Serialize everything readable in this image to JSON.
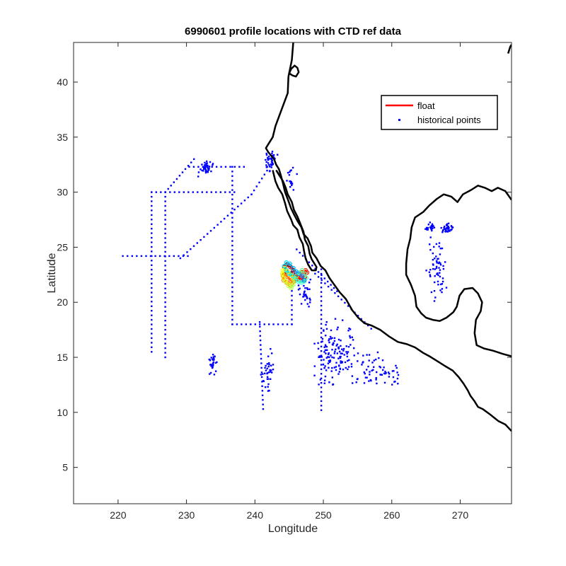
{
  "chart_data": {
    "type": "scatter",
    "title": "6990601 profile locations with CTD ref data",
    "xlabel": "Longitude",
    "ylabel": "Latitude",
    "xlim": [
      213.5,
      277.5
    ],
    "ylim": [
      1.7,
      43.6
    ],
    "xticks": [
      220,
      230,
      240,
      250,
      260,
      270
    ],
    "yticks": [
      5,
      10,
      15,
      20,
      25,
      30,
      35,
      40
    ],
    "grid": false,
    "legend": {
      "placement": "top-right",
      "entries": [
        {
          "label": "float",
          "color": "#ff0000",
          "marker": "line"
        },
        {
          "label": "historical points",
          "color": "#0000ff",
          "marker": "dot"
        }
      ]
    },
    "colors": {
      "coastline": "#000000",
      "historical": "#0000ff",
      "float": "#ff0000"
    },
    "coastline": [
      [
        [
          245.6,
          43.6
        ],
        [
          245.4,
          42
        ],
        [
          244.9,
          40.5
        ],
        [
          244.8,
          39
        ],
        [
          244.2,
          38
        ],
        [
          243.6,
          37
        ],
        [
          243,
          36
        ],
        [
          242.6,
          35
        ],
        [
          242,
          34.4
        ],
        [
          241.6,
          34
        ],
        [
          242,
          33.6
        ],
        [
          242.8,
          33
        ],
        [
          243.1,
          32.5
        ],
        [
          243.5,
          32.1
        ],
        [
          243.8,
          31.5
        ],
        [
          244.1,
          30.8
        ],
        [
          244.4,
          30
        ],
        [
          244.9,
          29.2
        ],
        [
          245.3,
          28.5
        ],
        [
          245.7,
          28
        ],
        [
          246.2,
          27.4
        ],
        [
          246.8,
          26.8
        ],
        [
          247.1,
          26.2
        ],
        [
          247.7,
          25.8
        ],
        [
          248.2,
          25.1
        ],
        [
          248.4,
          24.5
        ],
        [
          249,
          24
        ],
        [
          249.6,
          23.3
        ],
        [
          250.3,
          22.9
        ],
        [
          250.9,
          22.2
        ],
        [
          251.7,
          21.5
        ],
        [
          252.4,
          20.9
        ],
        [
          253.3,
          20.3
        ],
        [
          254.2,
          19.3
        ],
        [
          255.1,
          18.6
        ],
        [
          256,
          18.1
        ],
        [
          257,
          17.9
        ],
        [
          258.3,
          17.5
        ],
        [
          259.6,
          16.9
        ],
        [
          260.9,
          16.4
        ],
        [
          262.2,
          16.2
        ],
        [
          263.4,
          15.9
        ],
        [
          264.6,
          15.4
        ],
        [
          265.5,
          15.1
        ],
        [
          266.8,
          14.6
        ],
        [
          267.8,
          14.2
        ],
        [
          268.9,
          13.8
        ],
        [
          269.8,
          13.2
        ],
        [
          270.5,
          12.6
        ],
        [
          271.1,
          12
        ],
        [
          271.5,
          11.5
        ],
        [
          272.1,
          11
        ],
        [
          272.6,
          10.5
        ],
        [
          273.3,
          10.3
        ],
        [
          274.4,
          9.8
        ],
        [
          275.6,
          9.2
        ],
        [
          276.6,
          8.9
        ],
        [
          277.5,
          8.3
        ]
      ],
      [
        [
          242.6,
          32
        ],
        [
          243,
          31
        ],
        [
          243.4,
          30.4
        ],
        [
          244,
          29.8
        ],
        [
          244.4,
          29
        ],
        [
          244.7,
          28.3
        ],
        [
          245.3,
          27.5
        ],
        [
          245.6,
          27
        ],
        [
          246.2,
          26.6
        ],
        [
          246.5,
          25.9
        ],
        [
          247,
          25.3
        ],
        [
          247.2,
          24.6
        ],
        [
          247.4,
          24
        ],
        [
          247.8,
          23.4
        ],
        [
          248.3,
          22.9
        ],
        [
          248.9,
          22.9
        ],
        [
          249,
          23.2
        ],
        [
          248.3,
          23.9
        ],
        [
          248,
          24.4
        ],
        [
          247.8,
          25.1
        ],
        [
          247.3,
          25.7
        ],
        [
          247.1,
          26.4
        ],
        [
          246.6,
          27.2
        ],
        [
          246.2,
          27.8
        ],
        [
          245.7,
          28.4
        ],
        [
          245.4,
          29.1
        ],
        [
          244.8,
          29.8
        ],
        [
          244.5,
          30.4
        ],
        [
          244.1,
          31
        ],
        [
          243.6,
          31.5
        ],
        [
          243.1,
          32
        ]
      ],
      [
        [
          277.5,
          29.3
        ],
        [
          276.6,
          30.1
        ],
        [
          275.5,
          30.4
        ],
        [
          274.6,
          30.1
        ],
        [
          273.6,
          30.4
        ],
        [
          272.6,
          30.6
        ],
        [
          271.6,
          30.2
        ],
        [
          270.4,
          29.8
        ],
        [
          269.6,
          29.1
        ],
        [
          268.7,
          29.6
        ],
        [
          267.6,
          29.8
        ],
        [
          266.6,
          29.4
        ],
        [
          265.5,
          28.8
        ],
        [
          264.6,
          28.2
        ],
        [
          263.4,
          27.7
        ],
        [
          262.9,
          26.8
        ],
        [
          262.7,
          25.8
        ],
        [
          262.3,
          24.8
        ],
        [
          262.1,
          23.5
        ],
        [
          262.1,
          22.5
        ],
        [
          262.8,
          21.6
        ],
        [
          263.4,
          20.6
        ],
        [
          263.6,
          19.6
        ],
        [
          264.3,
          19
        ],
        [
          265,
          18.6
        ],
        [
          266,
          18.4
        ],
        [
          267,
          18.3
        ],
        [
          268,
          18.6
        ],
        [
          269,
          19.1
        ],
        [
          269.5,
          19.6
        ],
        [
          269.9,
          20.6
        ],
        [
          270.6,
          21.2
        ],
        [
          271.8,
          21.3
        ],
        [
          272.6,
          20.8
        ],
        [
          273.2,
          20
        ],
        [
          273,
          19.2
        ],
        [
          272.3,
          18.4
        ],
        [
          272.1,
          17.2
        ],
        [
          272.4,
          16.1
        ],
        [
          273.5,
          15.8
        ],
        [
          274.8,
          15.6
        ],
        [
          276.3,
          15.3
        ],
        [
          277.5,
          15.1
        ]
      ]
    ],
    "islands": [
      [
        [
          245,
          40.8
        ],
        [
          245.3,
          41.2
        ],
        [
          245.8,
          41.5
        ],
        [
          246.2,
          41.3
        ],
        [
          246.4,
          40.9
        ],
        [
          246,
          40.5
        ],
        [
          245.5,
          40.6
        ],
        [
          245,
          40.8
        ]
      ],
      [
        [
          277,
          42.6
        ],
        [
          277.3,
          43.2
        ],
        [
          277.5,
          43.4
        ]
      ]
    ],
    "historical_tracks": [
      [
        [
          224.9,
          30
        ],
        [
          224.9,
          15.5
        ]
      ],
      [
        [
          226.9,
          30
        ],
        [
          226.9,
          15
        ]
      ],
      [
        [
          220.7,
          24.2
        ],
        [
          230.2,
          24.2
        ]
      ],
      [
        [
          224.9,
          30
        ],
        [
          237,
          30
        ]
      ],
      [
        [
          226.9,
          30
        ],
        [
          231.1,
          33
        ]
      ],
      [
        [
          230.4,
          32.3
        ],
        [
          238.4,
          32.3
        ]
      ],
      [
        [
          236.7,
          32.3
        ],
        [
          236.7,
          18
        ]
      ],
      [
        [
          236.7,
          18
        ],
        [
          245.4,
          18
        ]
      ],
      [
        [
          245.4,
          18
        ],
        [
          245.4,
          23.2
        ]
      ],
      [
        [
          229.1,
          24
        ],
        [
          239.5,
          29.8
        ]
      ],
      [
        [
          239.5,
          29.8
        ],
        [
          243.3,
          33.4
        ]
      ],
      [
        [
          246.1,
          24.8
        ],
        [
          252,
          21
        ]
      ],
      [
        [
          249.7,
          23
        ],
        [
          249.7,
          10.2
        ]
      ],
      [
        [
          248.8,
          22.6
        ],
        [
          257,
          17.6
        ]
      ],
      [
        [
          240.7,
          18.2
        ],
        [
          241.2,
          10.3
        ]
      ]
    ],
    "historical_clusters": [
      {
        "center": [
          232.8,
          32.2
        ],
        "spread": [
          1.3,
          0.9
        ],
        "count": 40
      },
      {
        "center": [
          242.2,
          32.8
        ],
        "spread": [
          1,
          1.1
        ],
        "count": 40
      },
      {
        "center": [
          265.6,
          26.8
        ],
        "spread": [
          0.9,
          0.7
        ],
        "count": 24
      },
      {
        "center": [
          268.2,
          26.7
        ],
        "spread": [
          1.3,
          0.6
        ],
        "count": 36
      },
      {
        "center": [
          266.6,
          23
        ],
        "spread": [
          1.8,
          3.7
        ],
        "count": 60
      },
      {
        "center": [
          233.8,
          14.4
        ],
        "spread": [
          0.8,
          1.8
        ],
        "count": 32
      },
      {
        "center": [
          242,
          13.6
        ],
        "spread": [
          1.4,
          2.5
        ],
        "count": 36
      },
      {
        "center": [
          251.6,
          15.2
        ],
        "spread": [
          4.4,
          3.9
        ],
        "count": 140
      },
      {
        "center": [
          257.6,
          13.8
        ],
        "spread": [
          3.6,
          2.7
        ],
        "count": 50
      },
      {
        "center": [
          247.4,
          20.8
        ],
        "spread": [
          1.6,
          1.8
        ],
        "count": 30
      },
      {
        "center": [
          245.3,
          31.1
        ],
        "spread": [
          1.3,
          1.9
        ],
        "count": 18
      },
      {
        "center": [
          260.6,
          13.5
        ],
        "spread": [
          1.6,
          1.3
        ],
        "count": 12
      }
    ],
    "float_track": [
      [
        245.2,
        22.6
      ],
      [
        244.6,
        22.8
      ],
      [
        244.3,
        23.2
      ],
      [
        244.7,
        23.4
      ],
      [
        245.2,
        23.2
      ],
      [
        245.6,
        22.9
      ],
      [
        245.9,
        22.5
      ],
      [
        246.3,
        22.2
      ],
      [
        246.8,
        22.1
      ],
      [
        247.3,
        22.3
      ],
      [
        247.6,
        22.7
      ],
      [
        247.4,
        22.9
      ],
      [
        246.9,
        22.7
      ],
      [
        246.5,
        22.4
      ],
      [
        246.1,
        22.1
      ],
      [
        245.7,
        21.9
      ],
      [
        245.2,
        22
      ],
      [
        244.8,
        22.3
      ],
      [
        244.4,
        22.6
      ],
      [
        244.1,
        22.4
      ],
      [
        244.2,
        22
      ],
      [
        244.6,
        21.8
      ],
      [
        245.1,
        21.6
      ],
      [
        245.5,
        21.8
      ],
      [
        245.6,
        22.2
      ],
      [
        245.2,
        22.5
      ],
      [
        244.8,
        22.8
      ],
      [
        244.4,
        23.1
      ],
      [
        244.1,
        22.9
      ],
      [
        244,
        22.6
      ],
      [
        244.2,
        22.2
      ],
      [
        244.5,
        21.9
      ],
      [
        244.9,
        21.5
      ],
      [
        245.3,
        21.3
      ],
      [
        245.6,
        21.6
      ],
      [
        245.8,
        22
      ],
      [
        246.1,
        22.4
      ],
      [
        246.5,
        22.7
      ],
      [
        246.9,
        22.9
      ],
      [
        247.3,
        22.6
      ],
      [
        247.5,
        22.2
      ],
      [
        247.2,
        21.9
      ],
      [
        246.8,
        21.8
      ],
      [
        246.3,
        21.9
      ],
      [
        245.9,
        22.2
      ],
      [
        245.5,
        22.4
      ],
      [
        245,
        22.6
      ],
      [
        244.6,
        22.9
      ],
      [
        244.3,
        23.3
      ],
      [
        244.6,
        23.6
      ],
      [
        245.1,
        23.5
      ],
      [
        245.6,
        23.1
      ],
      [
        246,
        22.8
      ],
      [
        246.4,
        22.6
      ],
      [
        246.9,
        22.4
      ],
      [
        247.2,
        22
      ]
    ]
  }
}
